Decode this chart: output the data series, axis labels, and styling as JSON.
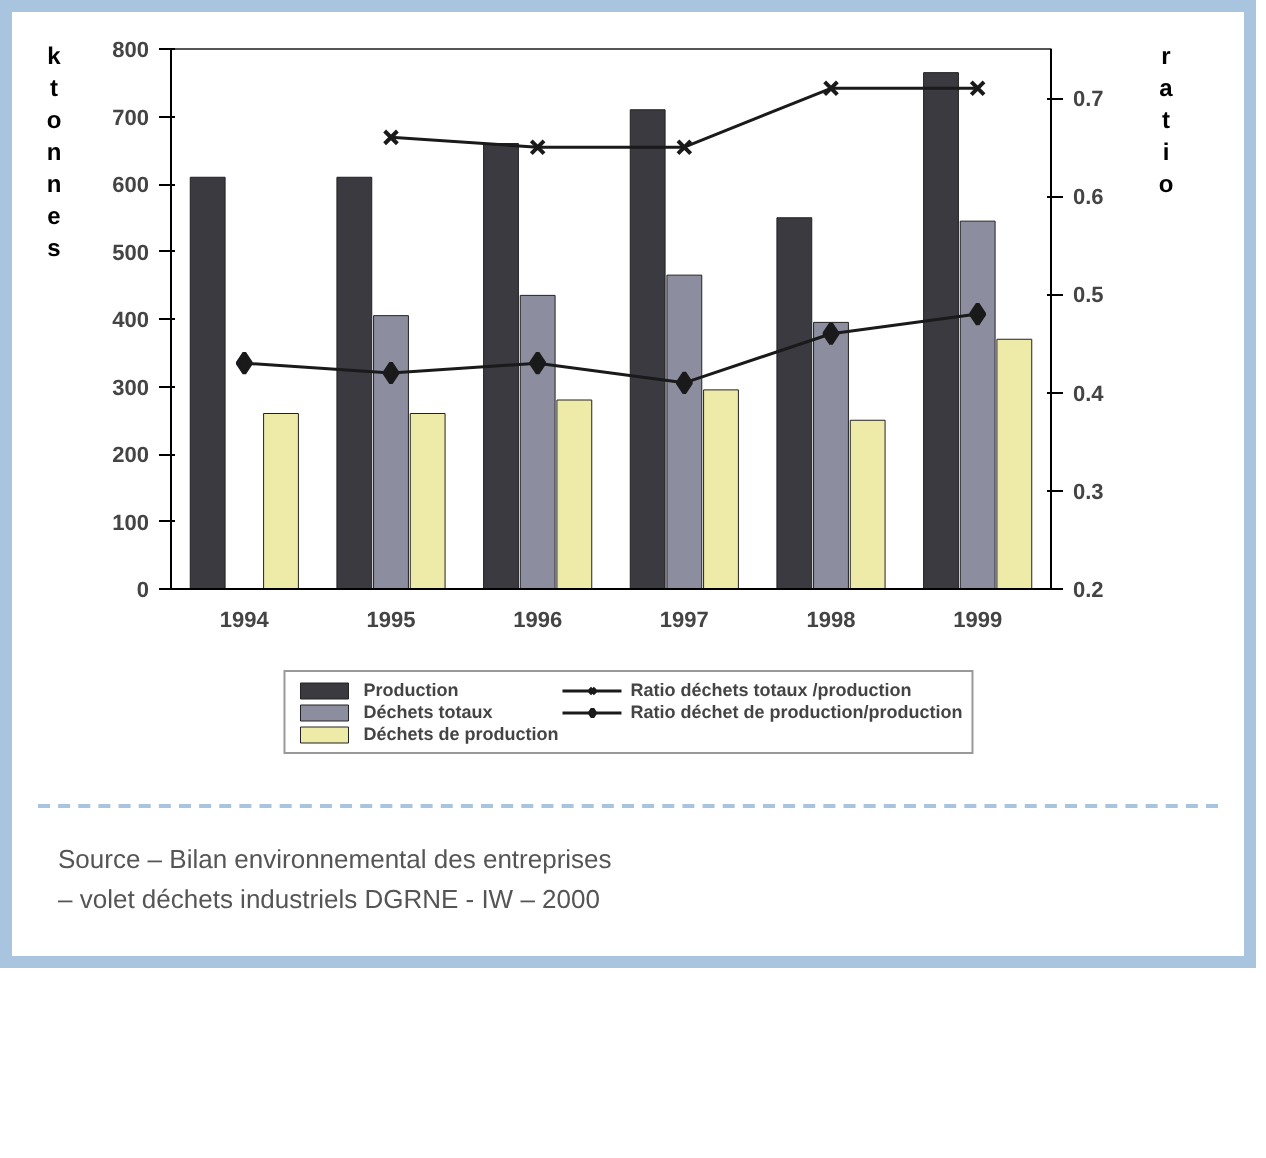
{
  "chart_data": {
    "type": "bar",
    "ylabel": "ktonnes",
    "y2label": "ratio",
    "categories": [
      "1994",
      "1995",
      "1996",
      "1997",
      "1998",
      "1999"
    ],
    "series": [
      {
        "name": "Production",
        "color": "#3a3a40",
        "values": [
          610,
          610,
          660,
          710,
          550,
          765
        ]
      },
      {
        "name": "Déchets totaux",
        "color": "#8c8ea0",
        "values": [
          null,
          405,
          435,
          465,
          395,
          545
        ]
      },
      {
        "name": "Déchets de production",
        "color": "#eeeaa8",
        "values": [
          260,
          260,
          280,
          295,
          250,
          370
        ]
      },
      {
        "name": "Ratio déchets totaux /production",
        "type": "line",
        "axis": "y2",
        "marker": "cross",
        "color": "#1a1a1a",
        "values": [
          null,
          0.66,
          0.65,
          0.65,
          0.71,
          0.71
        ]
      },
      {
        "name": "Ratio déchet de production/production",
        "type": "line",
        "axis": "y2",
        "marker": "diamond",
        "color": "#1a1a1a",
        "values": [
          0.43,
          0.42,
          0.43,
          0.41,
          0.46,
          0.48
        ]
      }
    ],
    "ylim": [
      0,
      800
    ],
    "yticks": [
      0,
      100,
      200,
      300,
      400,
      500,
      600,
      700,
      800
    ],
    "y2lim": [
      0.2,
      0.75
    ],
    "y2ticks": [
      0.2,
      0.3,
      0.4,
      0.5,
      0.6,
      0.7
    ],
    "legend": "bottom",
    "grid": false,
    "annotations": [
      "Source – Bilan environnemental des entreprises",
      "– volet déchets industriels DGRNE - IW – 2000"
    ]
  }
}
